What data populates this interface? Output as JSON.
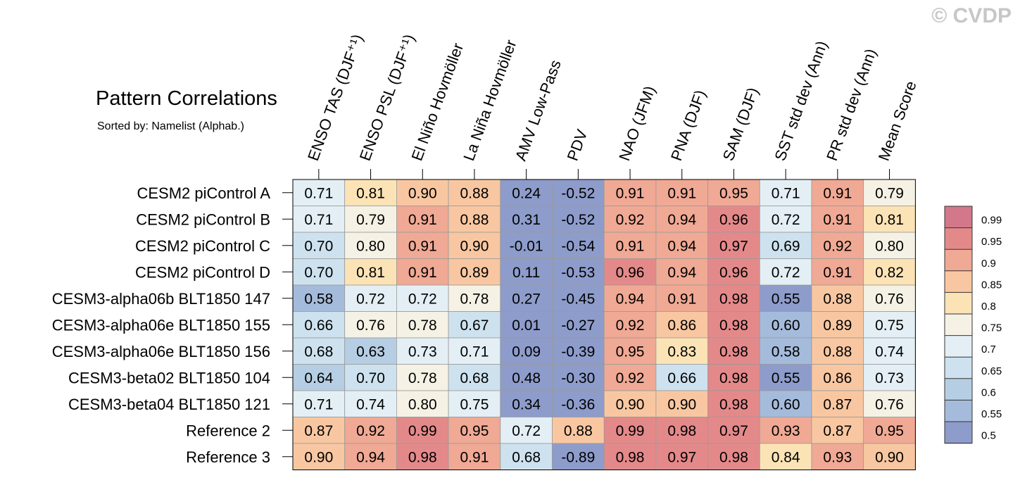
{
  "watermark": "© CVDP",
  "chart_data": {
    "type": "heatmap",
    "title": "Pattern Correlations",
    "subtitle": "Sorted by: Namelist (Alphab.)",
    "columns": [
      "ENSO TAS (DJF⁺¹)",
      "ENSO PSL (DJF⁺¹)",
      "El Niño Hovmöller",
      "La Niña Hovmöller",
      "AMV Low-Pass",
      "PDV",
      "NAO (JFM)",
      "PNA (DJF)",
      "SAM (DJF)",
      "SST std dev (Ann)",
      "PR std dev (Ann)",
      "Mean Score"
    ],
    "rows": [
      "CESM2 piControl A",
      "CESM2 piControl B",
      "CESM2 piControl C",
      "CESM2 piControl D",
      "CESM3-alpha06b BLT1850 147",
      "CESM3-alpha06e BLT1850 155",
      "CESM3-alpha06e BLT1850 156",
      "CESM3-beta02 BLT1850 104",
      "CESM3-beta04 BLT1850 121",
      "Reference 2",
      "Reference 3"
    ],
    "values": [
      [
        "0.71",
        "0.81",
        "0.90",
        "0.88",
        "0.24",
        "-0.52",
        "0.91",
        "0.91",
        "0.95",
        "0.71",
        "0.91",
        "0.79"
      ],
      [
        "0.71",
        "0.79",
        "0.91",
        "0.88",
        "0.31",
        "-0.52",
        "0.92",
        "0.94",
        "0.96",
        "0.72",
        "0.91",
        "0.81"
      ],
      [
        "0.70",
        "0.80",
        "0.91",
        "0.90",
        "-0.01",
        "-0.54",
        "0.91",
        "0.94",
        "0.97",
        "0.69",
        "0.92",
        "0.80"
      ],
      [
        "0.70",
        "0.81",
        "0.91",
        "0.89",
        "0.11",
        "-0.53",
        "0.96",
        "0.94",
        "0.96",
        "0.72",
        "0.91",
        "0.82"
      ],
      [
        "0.58",
        "0.72",
        "0.72",
        "0.78",
        "0.27",
        "-0.45",
        "0.94",
        "0.91",
        "0.98",
        "0.55",
        "0.88",
        "0.76"
      ],
      [
        "0.66",
        "0.76",
        "0.78",
        "0.67",
        "0.01",
        "-0.27",
        "0.92",
        "0.86",
        "0.98",
        "0.60",
        "0.89",
        "0.75"
      ],
      [
        "0.68",
        "0.63",
        "0.73",
        "0.71",
        "0.09",
        "-0.39",
        "0.95",
        "0.83",
        "0.98",
        "0.58",
        "0.88",
        "0.74"
      ],
      [
        "0.64",
        "0.70",
        "0.78",
        "0.68",
        "0.48",
        "-0.30",
        "0.92",
        "0.66",
        "0.98",
        "0.55",
        "0.86",
        "0.73"
      ],
      [
        "0.71",
        "0.74",
        "0.80",
        "0.75",
        "0.34",
        "-0.36",
        "0.90",
        "0.90",
        "0.98",
        "0.60",
        "0.87",
        "0.76"
      ],
      [
        "0.87",
        "0.92",
        "0.99",
        "0.95",
        "0.72",
        "0.88",
        "0.99",
        "0.98",
        "0.97",
        "0.93",
        "0.87",
        "0.95"
      ],
      [
        "0.90",
        "0.94",
        "0.98",
        "0.91",
        "0.68",
        "-0.89",
        "0.98",
        "0.97",
        "0.98",
        "0.84",
        "0.93",
        "0.90"
      ]
    ],
    "colorbar": {
      "levels": [
        "0.99",
        "0.95",
        "0.9",
        "0.85",
        "0.8",
        "0.75",
        "0.7",
        "0.65",
        "0.6",
        "0.55",
        "0.5"
      ],
      "colors": [
        "#d3778a",
        "#e4898a",
        "#f0a994",
        "#f8c7a1",
        "#fce3b6",
        "#f5f2e5",
        "#e3eff4",
        "#cde2ee",
        "#b5cee3",
        "#a5bbdb",
        "#8e9ccb"
      ]
    },
    "legend": "right"
  }
}
